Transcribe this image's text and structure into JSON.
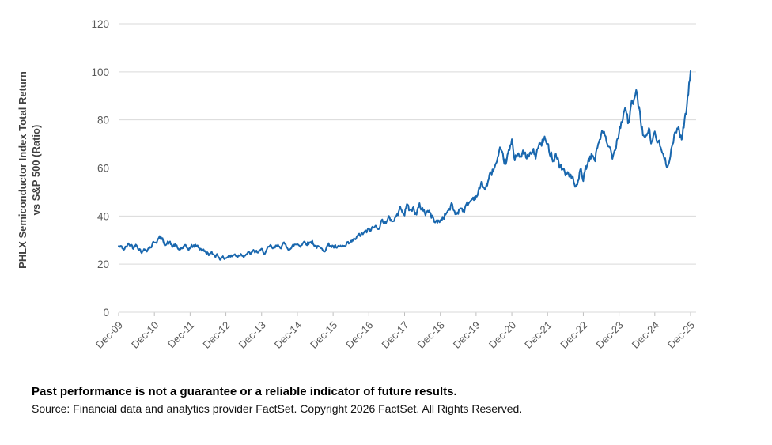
{
  "page": {
    "background": "#ffffff"
  },
  "chart_data": {
    "type": "line",
    "title": "",
    "ylabel_line1": "PHLX Semiconductor Index Total Return",
    "ylabel_line2": "vs S&P 500 (Ratio)",
    "xlabel": "",
    "legend": "none",
    "grid": "horizontal",
    "ylim": [
      0,
      120
    ],
    "y_ticks": [
      0,
      20,
      40,
      60,
      80,
      100,
      120
    ],
    "x_tick_labels": [
      "Dec-09",
      "Dec-10",
      "Dec-11",
      "Dec-12",
      "Dec-13",
      "Dec-14",
      "Dec-15",
      "Dec-16",
      "Dec-17",
      "Dec-18",
      "Dec-19",
      "Dec-20",
      "Dec-21",
      "Dec-22",
      "Dec-23",
      "Dec-24",
      "Dec-25"
    ],
    "series": [
      {
        "name": "PHLX Semiconductor Index Total Return vs S&P 500 (Ratio)",
        "color": "#1967ae",
        "start": "Dec-09",
        "interval": "monthly",
        "values": [
          27.5,
          26.8,
          26.3,
          27.8,
          28.3,
          26.8,
          28.8,
          26.5,
          25.3,
          26.2,
          26.8,
          27.6,
          29.3,
          30.2,
          30.7,
          29.5,
          28.7,
          28.9,
          27.4,
          27.8,
          25.9,
          26.6,
          27.0,
          26.3,
          26.9,
          27.4,
          27.6,
          27.0,
          26.2,
          25.0,
          24.6,
          24.1,
          23.8,
          24.0,
          22.9,
          22.4,
          22.9,
          23.5,
          23.2,
          23.9,
          23.6,
          24.4,
          24.0,
          24.6,
          24.2,
          24.8,
          25.2,
          25.0,
          25.4,
          25.1,
          25.9,
          26.8,
          26.4,
          27.1,
          27.7,
          28.0,
          27.8,
          27.2,
          26.5,
          27.9,
          28.4,
          28.1,
          29.1,
          29.4,
          28.8,
          29.6,
          27.8,
          26.9,
          25.8,
          26.4,
          27.5,
          28.0,
          27.4,
          26.7,
          26.4,
          27.3,
          27.0,
          28.0,
          28.7,
          29.9,
          31.0,
          31.9,
          32.7,
          33.1,
          33.9,
          34.7,
          35.3,
          35.7,
          37.1,
          38.3,
          37.4,
          38.8,
          38.2,
          39.6,
          41.6,
          43.7,
          41.6,
          44.6,
          41.8,
          43.6,
          40.8,
          43.9,
          43.2,
          41.4,
          42.2,
          39.8,
          38.6,
          37.4,
          38.2,
          39.6,
          41.4,
          42.6,
          44.6,
          40.6,
          42.2,
          44.0,
          42.6,
          44.6,
          46.0,
          47.6,
          48.6,
          50.6,
          53.6,
          51.2,
          54.2,
          57.2,
          60.2,
          62.1,
          65.6,
          63.1,
          62.6,
          66.2,
          70.1,
          64.2,
          68.1,
          63.2,
          66.6,
          63.6,
          65.1,
          66.6,
          65.2,
          68.6,
          70.1,
          72.1,
          68.2,
          67.1,
          64.6,
          66.1,
          61.2,
          60.1,
          56.6,
          58.6,
          56.1,
          52.6,
          51.1,
          58.6,
          55.6,
          60.1,
          62.6,
          65.1,
          64.1,
          70.1,
          74.6,
          73.1,
          69.1,
          67.6,
          65.6,
          71.1,
          76.1,
          80.1,
          86.1,
          79.6,
          84.1,
          88.1,
          90.1,
          82.6,
          75.1,
          71.6,
          74.6,
          70.1,
          75.1,
          70.6,
          68.1,
          64.1,
          60.6,
          66.1,
          70.1,
          74.1,
          77.1,
          72.1,
          80.1,
          88.1,
          100.3
        ]
      }
    ],
    "style": {
      "gridline_color": "#d9d9d9",
      "axis_color": "#bfbfbf",
      "tick_label_color": "#595959",
      "line_width": 2
    }
  },
  "footer": {
    "disclaimer": "Past performance is not a guarantee or a reliable indicator of future results.",
    "source": "Source: Financial data and analytics provider FactSet. Copyright 2026 FactSet. All Rights Reserved."
  }
}
